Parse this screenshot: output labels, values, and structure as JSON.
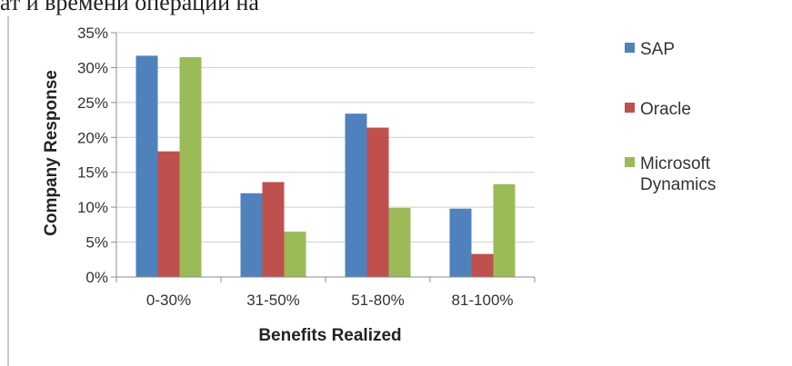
{
  "page": {
    "top_text": "ат и времени операции на"
  },
  "chart_data": {
    "type": "bar",
    "categories": [
      "0-30%",
      "31-50%",
      "51-80%",
      "81-100%"
    ],
    "series": [
      {
        "name": "SAP",
        "values": [
          31.7,
          12.0,
          23.4,
          9.8
        ],
        "color": "#4f81bd"
      },
      {
        "name": "Oracle",
        "values": [
          18.0,
          13.6,
          21.4,
          3.3
        ],
        "color": "#c0504d"
      },
      {
        "name": "Microsoft Dynamics",
        "values": [
          31.5,
          6.5,
          9.9,
          13.3
        ],
        "color": "#9bbb59"
      }
    ],
    "legend_lines": [
      [
        "SAP"
      ],
      [
        "Oracle"
      ],
      [
        "Microsoft",
        "Dynamics"
      ]
    ],
    "xlabel": "Benefits Realized",
    "ylabel": "Company Response",
    "ylim": [
      0,
      35
    ],
    "yticks": [
      "0%",
      "5%",
      "10%",
      "15%",
      "20%",
      "25%",
      "30%",
      "35%"
    ],
    "grid": true,
    "legend_position": "right"
  }
}
